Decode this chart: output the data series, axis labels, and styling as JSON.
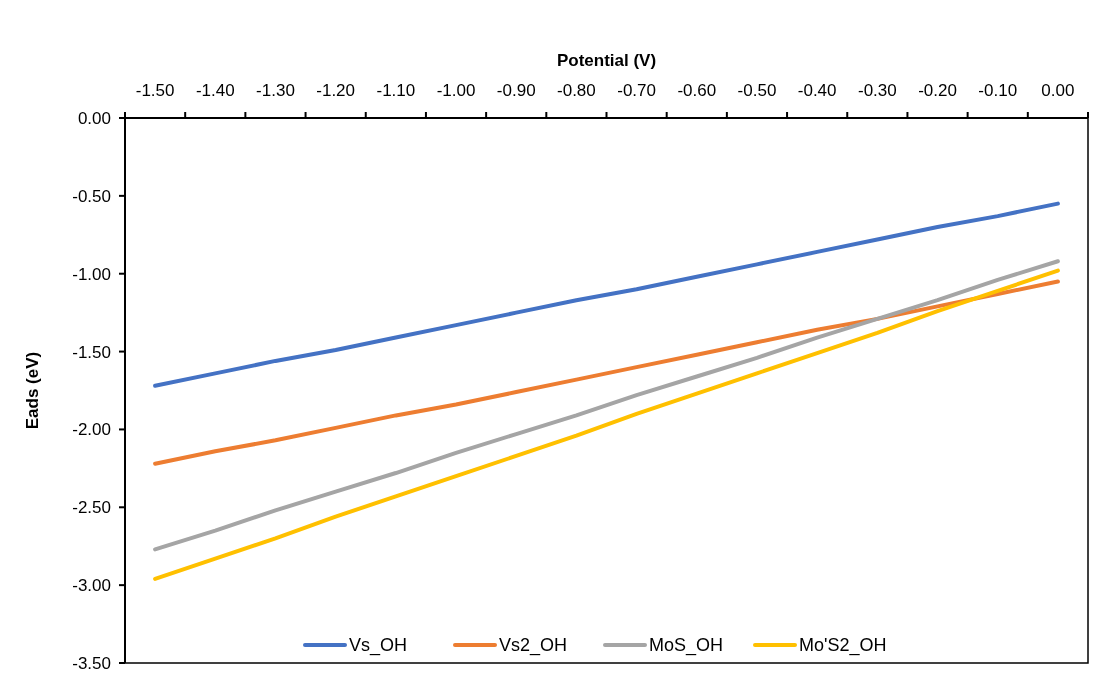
{
  "chart_data": {
    "type": "line",
    "xlabel": "Potential (V)",
    "ylabel": "Eads (eV)",
    "categories": [
      "-1.50",
      "-1.40",
      "-1.30",
      "-1.20",
      "-1.10",
      "-1.00",
      "-0.90",
      "-0.80",
      "-0.70",
      "-0.60",
      "-0.50",
      "-0.40",
      "-0.30",
      "-0.20",
      "-0.10",
      "0.00"
    ],
    "series": [
      {
        "name": "Vs_OH",
        "color": "#4472c4",
        "values": [
          -1.72,
          -1.64,
          -1.56,
          -1.49,
          -1.41,
          -1.33,
          -1.25,
          -1.17,
          -1.1,
          -1.02,
          -0.94,
          -0.86,
          -0.78,
          -0.7,
          -0.63,
          -0.55
        ]
      },
      {
        "name": "Vs2_OH",
        "color": "#ed7d31",
        "values": [
          -2.22,
          -2.14,
          -2.07,
          -1.99,
          -1.91,
          -1.84,
          -1.76,
          -1.68,
          -1.6,
          -1.52,
          -1.44,
          -1.36,
          -1.29,
          -1.21,
          -1.13,
          -1.05
        ]
      },
      {
        "name": "MoS_OH",
        "color": "#a5a5a5",
        "values": [
          -2.77,
          -2.65,
          -2.52,
          -2.4,
          -2.28,
          -2.15,
          -2.03,
          -1.91,
          -1.78,
          -1.66,
          -1.54,
          -1.41,
          -1.29,
          -1.17,
          -1.04,
          -0.92
        ]
      },
      {
        "name": "Mo'S2_OH",
        "color": "#ffc000",
        "values": [
          -2.96,
          -2.83,
          -2.7,
          -2.56,
          -2.43,
          -2.3,
          -2.17,
          -2.04,
          -1.9,
          -1.77,
          -1.64,
          -1.51,
          -1.38,
          -1.24,
          -1.11,
          -0.98
        ]
      }
    ],
    "ylim": [
      -3.5,
      0
    ],
    "yticks": [
      {
        "value": 0,
        "label": "0.00"
      },
      {
        "value": -0.5,
        "label": "-0.50"
      },
      {
        "value": -1,
        "label": "-1.00"
      },
      {
        "value": -1.5,
        "label": "-1.50"
      },
      {
        "value": -2,
        "label": "-2.00"
      },
      {
        "value": -2.5,
        "label": "-2.50"
      },
      {
        "value": -3,
        "label": "-3.00"
      },
      {
        "value": -3.5,
        "label": "-3.50"
      }
    ],
    "grid": false,
    "legend": "bottom",
    "marker": "none",
    "line_style": "solid"
  }
}
